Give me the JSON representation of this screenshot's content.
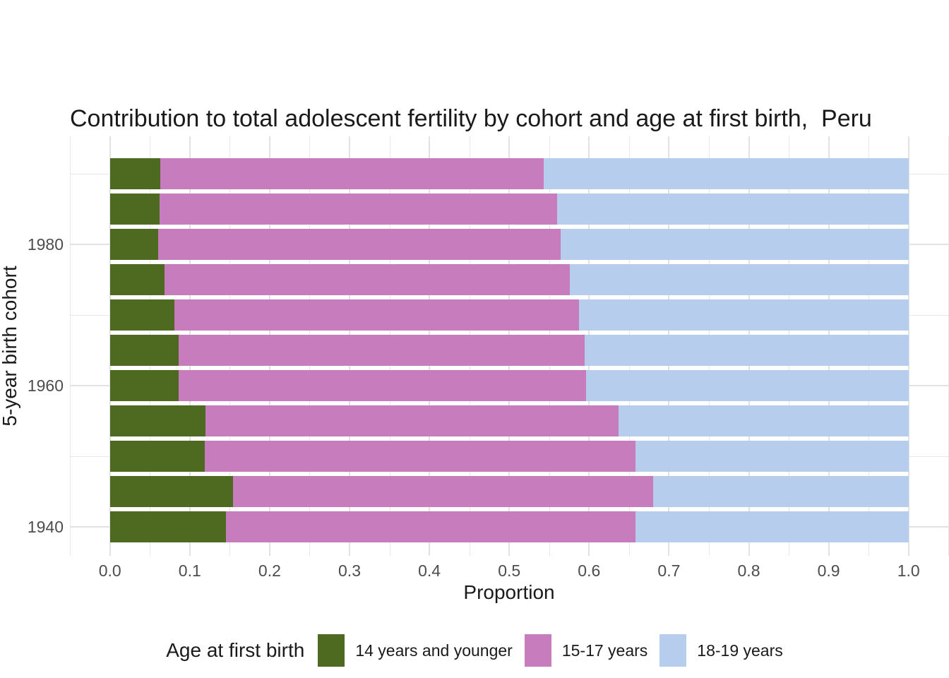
{
  "title": "Contribution to total adolescent fertility by cohort and age at first birth,  Peru",
  "x_axis": {
    "label": "Proportion",
    "ticks": [
      "0.0",
      "0.1",
      "0.2",
      "0.3",
      "0.4",
      "0.5",
      "0.6",
      "0.7",
      "0.8",
      "0.9",
      "1.0"
    ]
  },
  "y_axis": {
    "label": "5-year birth cohort",
    "ticks": [
      "1980",
      "1960",
      "1940"
    ]
  },
  "legend": {
    "title": "Age at first birth"
  },
  "colors": {
    "age_14_and_younger": "#4d6a20",
    "age_15_17": "#c77cbd",
    "age_18_19": "#b6cdee",
    "grid_major": "#e2e2e2",
    "grid_minor": "#e7e7e7",
    "tick_text": "#4d4d4d",
    "text": "#1a1a1a",
    "background": "#ffffff"
  },
  "chart_data": {
    "type": "bar",
    "orientation": "horizontal",
    "stacked": true,
    "title": "Contribution to total adolescent fertility by cohort and age at first birth,  Peru",
    "xlabel": "Proportion",
    "ylabel": "5-year birth cohort",
    "xlim": [
      0,
      1
    ],
    "x_major_ticks": [
      0.0,
      0.1,
      0.2,
      0.3,
      0.4,
      0.5,
      0.6,
      0.7,
      0.8,
      0.9,
      1.0
    ],
    "x_minor_tick_step": 0.05,
    "y_labeled_ticks": [
      1980,
      1960,
      1940
    ],
    "grid": "on",
    "legend_position": "bottom",
    "categories": [
      1990,
      1985,
      1980,
      1975,
      1970,
      1965,
      1960,
      1955,
      1950,
      1945,
      1940
    ],
    "series": [
      {
        "name": "14 years and younger",
        "color": "#4d6a20",
        "values": [
          0.063,
          0.062,
          0.06,
          0.068,
          0.081,
          0.086,
          0.086,
          0.12,
          0.119,
          0.154,
          0.145
        ]
      },
      {
        "name": "15-17 years",
        "color": "#c77cbd",
        "values": [
          0.48,
          0.498,
          0.504,
          0.508,
          0.506,
          0.508,
          0.51,
          0.517,
          0.539,
          0.526,
          0.513
        ]
      },
      {
        "name": "18-19 years",
        "color": "#b6cdee",
        "values": [
          0.457,
          0.44,
          0.436,
          0.424,
          0.413,
          0.406,
          0.404,
          0.363,
          0.342,
          0.32,
          0.342
        ]
      }
    ]
  }
}
